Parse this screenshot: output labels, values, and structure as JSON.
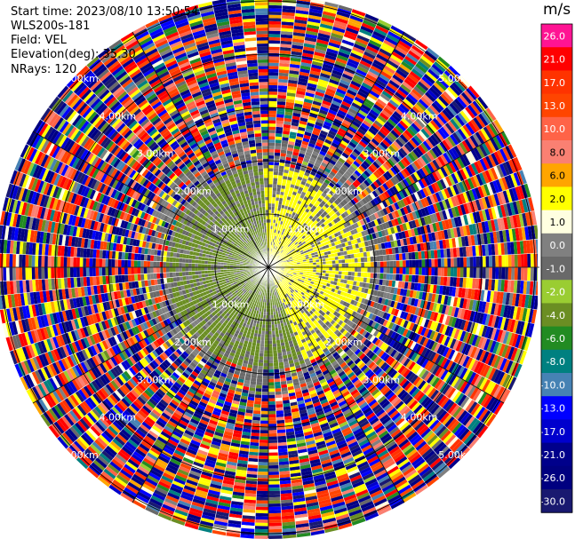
{
  "info": {
    "start_time": "Start time: 2023/08/10 13:50:54",
    "instrument": "WLS200s-181",
    "field": "Field: VEL",
    "elevation": "Elevation(deg): 35.30",
    "nrays": "NRays: 120"
  },
  "colorbar": {
    "unit": "m/s",
    "labels": [
      "26.0",
      "21.0",
      "17.0",
      "13.0",
      "10.0",
      "8.0",
      "6.0",
      "2.0",
      "1.0",
      "0.0",
      "-1.0",
      "-2.0",
      "-4.0",
      "-6.0",
      "-8.0",
      "-10.0",
      "-13.0",
      "-17.0",
      "-21.0",
      "-26.0",
      "-30.0"
    ],
    "colors": [
      "#ff1493",
      "#ff0000",
      "#ff3300",
      "#ff4500",
      "#ff6347",
      "#fa8072",
      "#ffa500",
      "#ffff00",
      "#ffffe0",
      "#808080",
      "#696969",
      "#9acd32",
      "#6b8e23",
      "#228b22",
      "#008080",
      "#4682b4",
      "#0000ff",
      "#0000cd",
      "#00008b",
      "#000080",
      "#191970"
    ]
  },
  "chart_data": {
    "type": "heatmap",
    "title": "",
    "field": "VEL",
    "units": "m/s",
    "elevation_deg": 35.3,
    "nrays": 120,
    "range_rings_km": [
      1.0,
      2.0,
      3.0,
      4.0,
      5.0
    ],
    "range_ring_labels": [
      "1.00km",
      "2.00km",
      "3.00km",
      "4.00km",
      "5.00km"
    ],
    "color_range": [
      -30.0,
      26.0
    ],
    "pattern": {
      "near_field_max_km": 1.9,
      "near_field_positive_velocity_m_s": 2.0,
      "near_field_negative_velocity_m_s": -2.0,
      "far_field": "noise"
    }
  }
}
